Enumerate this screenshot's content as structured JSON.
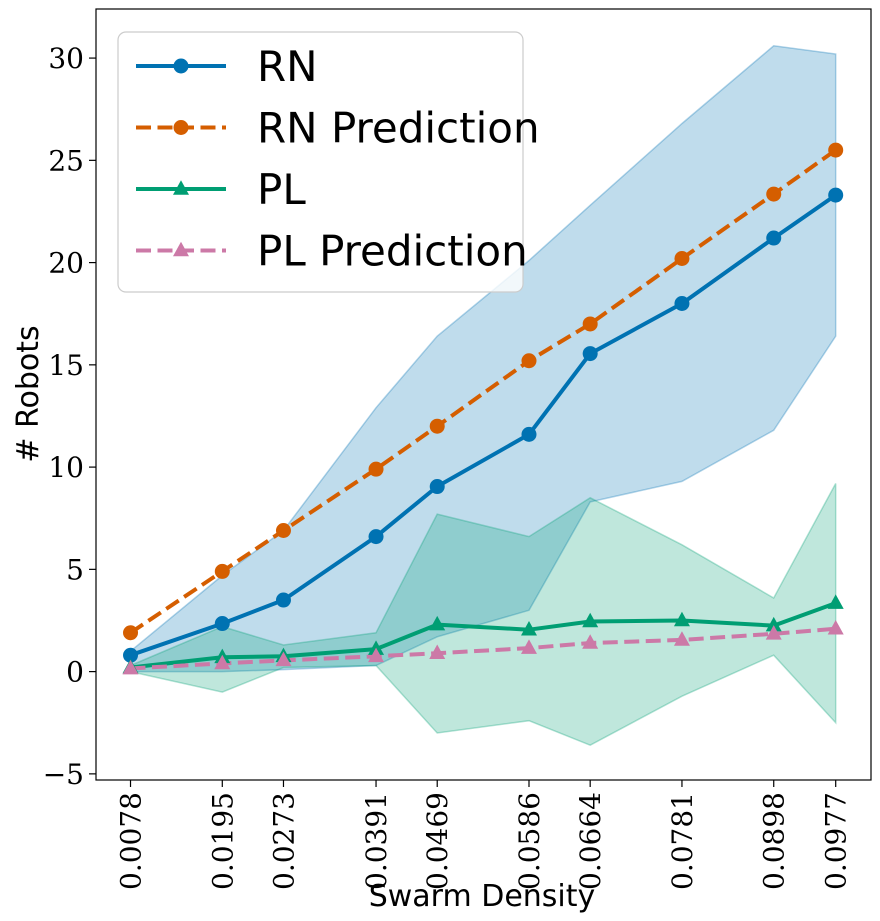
{
  "chart_data": {
    "type": "line",
    "title": "",
    "xlabel": "Swarm Density",
    "ylabel": "# Robots",
    "x": [
      0.0078,
      0.0195,
      0.0273,
      0.0391,
      0.0469,
      0.0586,
      0.0664,
      0.0781,
      0.0898,
      0.0977
    ],
    "x_tick_labels": [
      "0.0078",
      "0.0195",
      "0.0273",
      "0.0391",
      "0.0469",
      "0.0586",
      "0.0664",
      "0.0781",
      "0.0898",
      "0.0977"
    ],
    "y_ticks": [
      -5,
      0,
      5,
      10,
      15,
      20,
      25,
      30
    ],
    "y_tick_labels": [
      "−5",
      "0",
      "5",
      "10",
      "15",
      "20",
      "25",
      "30"
    ],
    "xlim": [
      0.0034,
      0.1022
    ],
    "ylim": [
      -5.3,
      32.4
    ],
    "grid": false,
    "legend_position": "top-left",
    "series": [
      {
        "name": "RN",
        "color": "#0072b2",
        "dash": "solid",
        "marker": "circle",
        "values": [
          0.8,
          2.35,
          3.5,
          6.6,
          9.05,
          11.6,
          15.55,
          18.0,
          21.2,
          23.3
        ]
      },
      {
        "name": "RN Prediction",
        "color": "#d55e00",
        "dash": "dashed",
        "marker": "circle",
        "values": [
          1.9,
          4.9,
          6.9,
          9.9,
          12.0,
          15.2,
          17.0,
          20.2,
          23.35,
          25.5
        ]
      },
      {
        "name": "PL",
        "color": "#009e73",
        "dash": "solid",
        "marker": "triangle",
        "values": [
          0.2,
          0.7,
          0.75,
          1.1,
          2.3,
          2.05,
          2.45,
          2.5,
          2.25,
          3.35
        ]
      },
      {
        "name": "PL Prediction",
        "color": "#cc79a7",
        "dash": "dashed",
        "marker": "triangle",
        "values": [
          0.15,
          0.4,
          0.55,
          0.75,
          0.9,
          1.15,
          1.4,
          1.55,
          1.85,
          2.1
        ]
      }
    ],
    "bands": [
      {
        "for": "RN",
        "color": "#0072b2",
        "upper": [
          1.0,
          4.7,
          6.9,
          12.9,
          16.4,
          20.1,
          22.8,
          26.8,
          30.6,
          30.2
        ],
        "lower": [
          0.0,
          0.0,
          0.1,
          0.3,
          1.7,
          3.0,
          8.3,
          9.3,
          11.8,
          16.4
        ]
      },
      {
        "for": "PL",
        "color": "#009e73",
        "upper": [
          0.3,
          2.2,
          1.3,
          1.9,
          7.7,
          6.6,
          8.5,
          6.2,
          3.6,
          9.2
        ],
        "lower": [
          0.0,
          -1.0,
          0.2,
          0.3,
          -3.0,
          -2.4,
          -3.6,
          -1.2,
          0.8,
          -2.5
        ]
      }
    ]
  }
}
